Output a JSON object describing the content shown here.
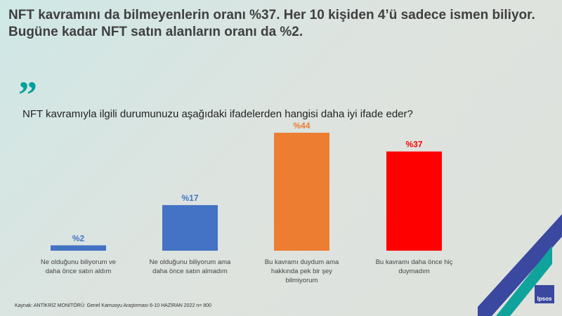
{
  "title": "NFT kavramını da bilmeyenlerin oranı %37. Her 10 kişiden 4’ü sadece ismen biliyor. Bugüne kadar NFT satın alanların oranı da %2.",
  "quote_mark": "”",
  "question": "NFT kavramıyla ilgili durumunuzu aşağıdaki ifadelerden hangisi daha iyi ifade eder?",
  "source": "Kaynak: ANTİKRİZ MONİTÖRÜ: Genel Kamuoyu Araştırması 6-10 HAZİRAN 2022 n= 800",
  "logo": "Ipsos",
  "chart_data": {
    "type": "bar",
    "categories": [
      "Ne olduğunu biliyorum ve daha önce satın aldım",
      "Ne olduğunu biliyorum ama daha önce satın almadım",
      "Bu kavramı duydum ama hakkında pek bir şey bilmiyorum",
      "Bu kavramı daha önce hiç duymadım"
    ],
    "values": [
      2,
      17,
      44,
      37
    ],
    "data_labels": [
      "%2",
      "%17",
      "%44",
      "%37"
    ],
    "colors": [
      "#4472c4",
      "#4472c4",
      "#ed7d31",
      "#ff0000"
    ],
    "ylim": [
      0,
      44
    ],
    "grid": false
  }
}
